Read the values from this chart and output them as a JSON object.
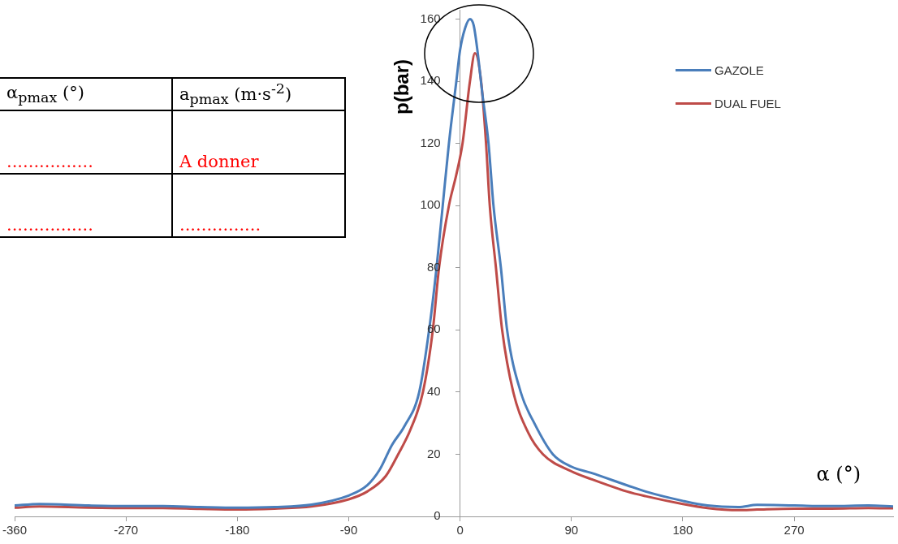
{
  "chart_data": {
    "type": "line",
    "xlabel": "α (°)",
    "ylabel": "p(bar)",
    "xlim": [
      -360,
      350
    ],
    "xticks": [
      -360,
      -270,
      -180,
      -90,
      0,
      90,
      180,
      270
    ],
    "ylim": [
      0,
      163
    ],
    "yticks": [
      0,
      20,
      40,
      60,
      80,
      100,
      120,
      140,
      160
    ],
    "grid": false,
    "legend": "top right",
    "marker": "none",
    "line_style": "solid",
    "series": [
      {
        "name": "GAZOLE",
        "color": "#4a7ebb",
        "x": [
          -360,
          -340,
          -300,
          -270,
          -240,
          -210,
          -180,
          -150,
          -120,
          -90,
          -75,
          -65,
          -55,
          -45,
          -33,
          -25,
          -19,
          -14,
          -9,
          -3,
          0,
          4,
          8,
          11,
          14,
          18,
          23,
          27,
          33,
          38,
          49,
          60,
          75,
          90,
          106,
          135,
          150,
          180,
          200,
          225,
          240,
          270,
          300,
          330,
          350
        ],
        "values": [
          3.5,
          4,
          3.5,
          3.3,
          3.3,
          3,
          2.8,
          3,
          3.8,
          6.7,
          10,
          15,
          23,
          29,
          40,
          60,
          80,
          100,
          120,
          140,
          150,
          157,
          160,
          158,
          150,
          136,
          120,
          100,
          80,
          60,
          40,
          30,
          20,
          16,
          14,
          10,
          8,
          5,
          3.5,
          3,
          3.7,
          3.5,
          3.3,
          3.5,
          3.2
        ]
      },
      {
        "name": "DUAL FUEL",
        "color": "#be4b48",
        "x": [
          -360,
          -340,
          -300,
          -270,
          -240,
          -210,
          -180,
          -150,
          -120,
          -90,
          -75,
          -60,
          -50,
          -40,
          -30,
          -22,
          -17,
          -9,
          -3,
          2,
          8,
          12,
          17,
          21,
          24,
          29,
          34,
          43,
          55,
          67,
          90,
          106,
          135,
          150,
          180,
          200,
          225,
          240,
          270,
          300,
          330,
          350
        ],
        "values": [
          2.8,
          3.2,
          2.8,
          2.7,
          2.7,
          2.4,
          2.2,
          2.5,
          3.2,
          5.5,
          8,
          13,
          20,
          28,
          40,
          60,
          80,
          100,
          110,
          120,
          140,
          149,
          140,
          120,
          100,
          80,
          60,
          40,
          27,
          20,
          14.5,
          12,
          8,
          6.5,
          4,
          2.7,
          2,
          2.2,
          2.5,
          2.5,
          2.7,
          2.6
        ]
      }
    ],
    "annotations": [
      "α$_{pmax}$ (°)",
      "a$_{pmax}$ (m·s$^{-2}$)",
      "................",
      "A donner",
      "................",
      "..............."
    ]
  }
}
